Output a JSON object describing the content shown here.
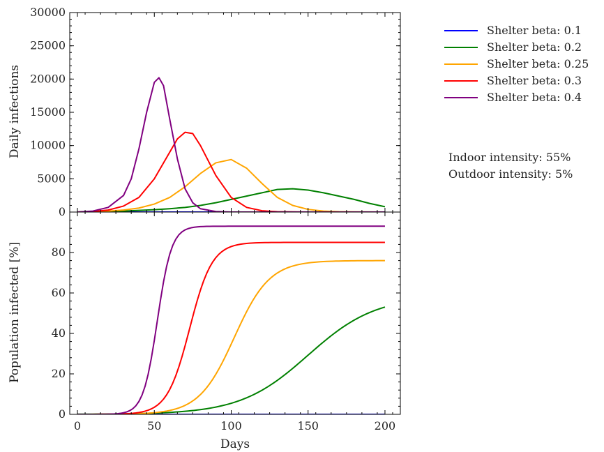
{
  "chart_data": [
    {
      "type": "line",
      "ylabel": "Daily infections",
      "xlim": [
        0,
        200
      ],
      "ylim": [
        0,
        30000
      ],
      "yticks": [
        0,
        5000,
        10000,
        15000,
        20000,
        25000,
        30000
      ],
      "series": [
        {
          "name": "Shelter beta: 0.1",
          "color": "#0000ff",
          "x": [
            0,
            50,
            100,
            150,
            200
          ],
          "y": [
            0,
            0,
            0,
            0,
            0
          ]
        },
        {
          "name": "Shelter beta: 0.2",
          "color": "#008000",
          "x": [
            0,
            10,
            20,
            30,
            40,
            50,
            60,
            70,
            80,
            90,
            100,
            110,
            120,
            130,
            140,
            150,
            160,
            170,
            180,
            190,
            200
          ],
          "y": [
            0,
            30,
            80,
            150,
            250,
            350,
            500,
            700,
            1000,
            1400,
            1900,
            2400,
            2900,
            3400,
            3500,
            3300,
            2900,
            2400,
            1900,
            1300,
            800
          ]
        },
        {
          "name": "Shelter beta: 0.25",
          "color": "#ffa500",
          "x": [
            0,
            10,
            20,
            30,
            40,
            50,
            60,
            70,
            80,
            90,
            100,
            110,
            120,
            130,
            140,
            150,
            160,
            170,
            180,
            200
          ],
          "y": [
            0,
            50,
            150,
            300,
            600,
            1200,
            2200,
            3800,
            5800,
            7400,
            7900,
            6600,
            4300,
            2200,
            1000,
            400,
            150,
            50,
            20,
            0
          ]
        },
        {
          "name": "Shelter beta: 0.3",
          "color": "#ff0000",
          "x": [
            0,
            10,
            20,
            30,
            40,
            50,
            60,
            65,
            70,
            75,
            80,
            90,
            100,
            110,
            120,
            130,
            150,
            200
          ],
          "y": [
            0,
            80,
            300,
            900,
            2200,
            5000,
            9000,
            11000,
            12000,
            11800,
            10000,
            5500,
            2200,
            700,
            200,
            50,
            0,
            0
          ]
        },
        {
          "name": "Shelter beta: 0.4",
          "color": "#800080",
          "x": [
            0,
            10,
            20,
            30,
            35,
            40,
            45,
            50,
            53,
            56,
            60,
            65,
            70,
            75,
            80,
            90,
            100,
            120,
            200
          ],
          "y": [
            0,
            150,
            700,
            2500,
            5000,
            9500,
            15000,
            19500,
            20200,
            19000,
            14000,
            8000,
            3500,
            1400,
            500,
            80,
            0,
            0,
            0
          ]
        }
      ]
    },
    {
      "type": "line",
      "xlabel": "Days",
      "ylabel": "Population infected [%]",
      "xlim": [
        -5,
        210
      ],
      "ylim": [
        0,
        100
      ],
      "xticks": [
        0,
        50,
        100,
        150,
        200
      ],
      "yticks": [
        0,
        20,
        40,
        60,
        80
      ],
      "series": [
        {
          "name": "Shelter beta: 0.1",
          "color": "#0000ff",
          "x": [
            0,
            200
          ],
          "y": [
            0,
            0
          ]
        },
        {
          "name": "Shelter beta: 0.2",
          "color": "#008000",
          "logistic": {
            "max": 58.5,
            "midpoint": 150,
            "scale": 22
          }
        },
        {
          "name": "Shelter beta: 0.25",
          "color": "#ffa500",
          "logistic": {
            "max": 76,
            "midpoint": 102,
            "scale": 11.5
          }
        },
        {
          "name": "Shelter beta: 0.3",
          "color": "#ff0000",
          "logistic": {
            "max": 85,
            "midpoint": 73,
            "scale": 7.3
          }
        },
        {
          "name": "Shelter beta: 0.4",
          "color": "#800080",
          "logistic": {
            "max": 93,
            "midpoint": 52,
            "scale": 4.6
          }
        }
      ]
    }
  ],
  "legend": {
    "entries": [
      {
        "label": "Shelter beta: 0.1",
        "color": "#0000ff"
      },
      {
        "label": "Shelter beta: 0.2",
        "color": "#008000"
      },
      {
        "label": "Shelter beta: 0.25",
        "color": "#ffa500"
      },
      {
        "label": "Shelter beta: 0.3",
        "color": "#ff0000"
      },
      {
        "label": "Shelter beta: 0.4",
        "color": "#800080"
      }
    ]
  },
  "annotations": {
    "indoor": "Indoor intensity: 55%",
    "outdoor": "Outdoor intensity: 5%"
  }
}
